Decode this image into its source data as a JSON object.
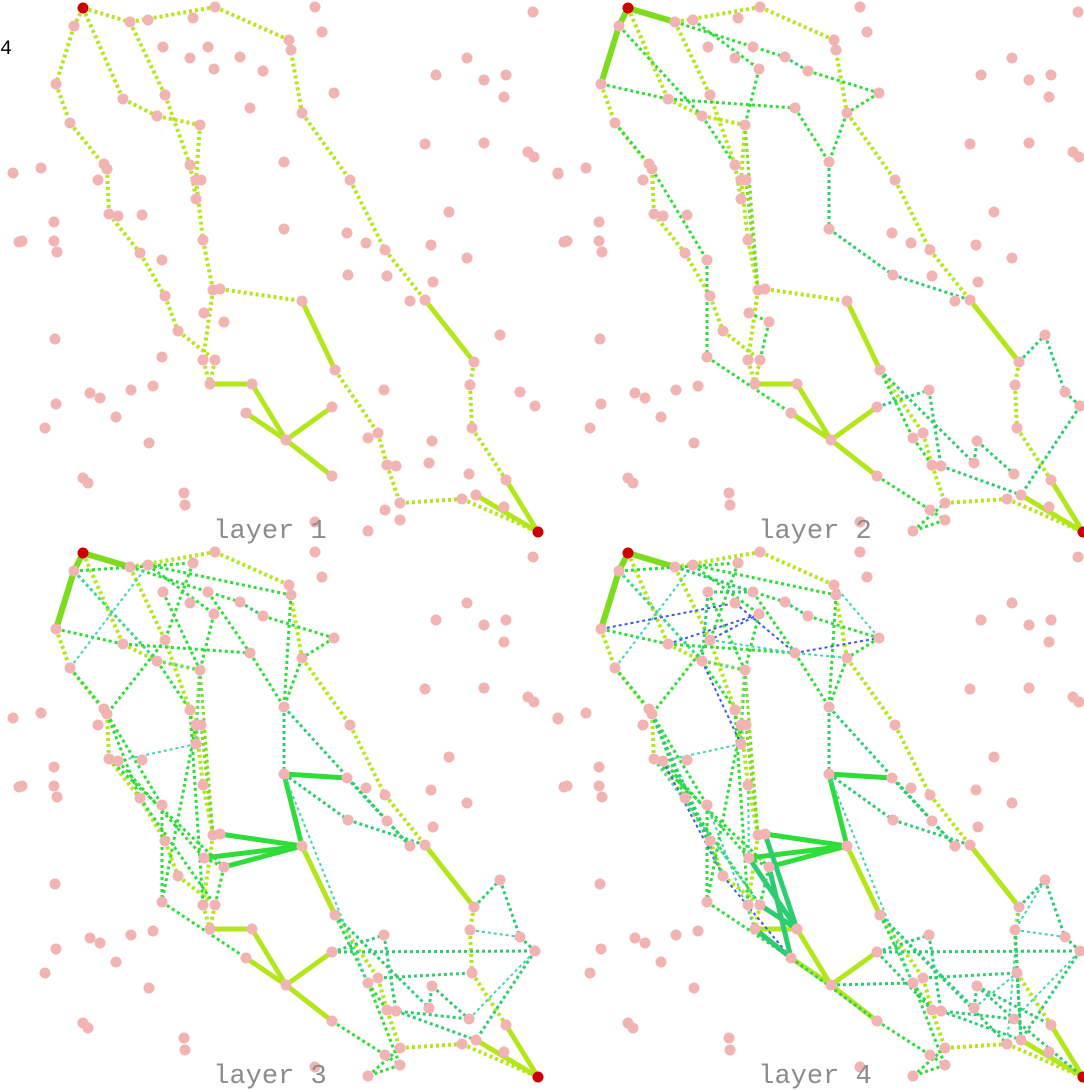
{
  "corner_text": "4",
  "panels": [
    {
      "label": "layer 1"
    },
    {
      "label": "layer 2"
    },
    {
      "label": "layer 3"
    },
    {
      "label": "layer 4"
    }
  ],
  "colors": {
    "node": "#f2b3b3",
    "endpoint": "#cc0000",
    "label": "#8c8c8c",
    "edge_palette": [
      "#b5e61d",
      "#7ddc1f",
      "#2edc3a",
      "#2ecc71",
      "#40d3b0",
      "#3a5bd9"
    ]
  }
}
